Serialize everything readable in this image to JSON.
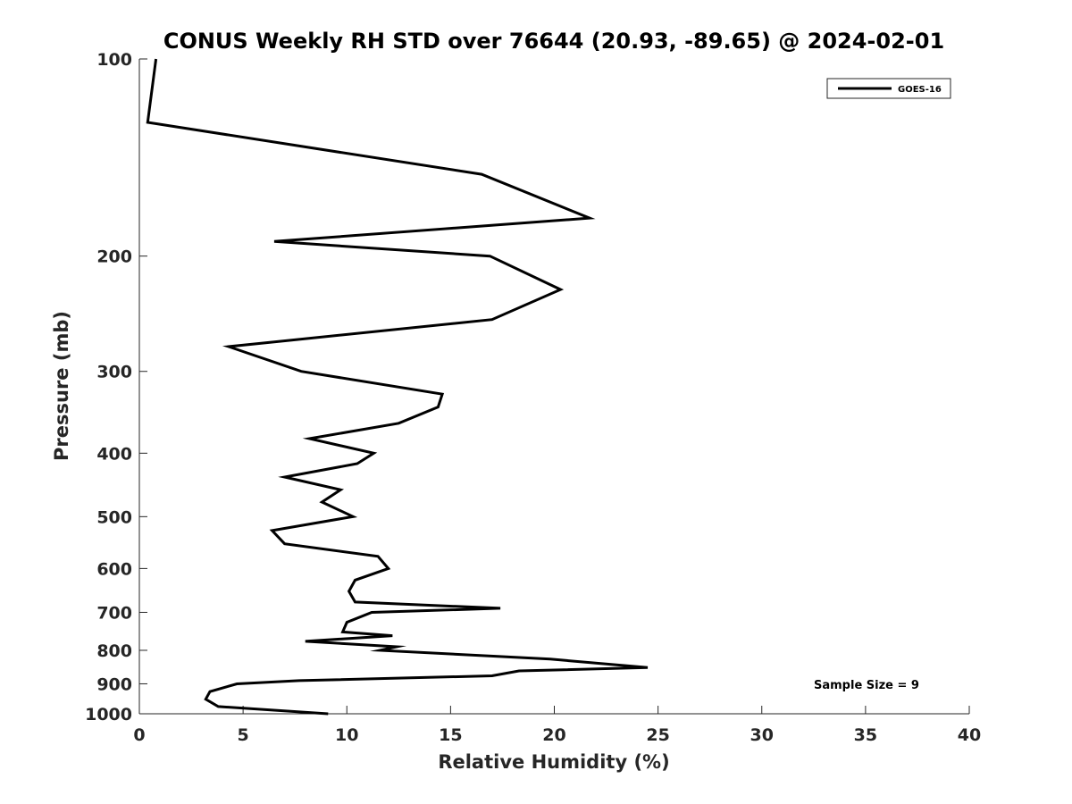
{
  "chart_data": {
    "type": "line",
    "title": "CONUS Weekly RH STD over 76644 (20.93, -89.65) @ 2024-02-01",
    "xlabel": "Relative Humidity (%)",
    "ylabel": "Pressure (mb)",
    "xlim": [
      0,
      40
    ],
    "ylim": [
      100,
      1000
    ],
    "yscale": "log",
    "y_reversed": true,
    "x_ticks": [
      0,
      5,
      10,
      15,
      20,
      25,
      30,
      35,
      40
    ],
    "x_tick_labels": [
      "0",
      "5",
      "10",
      "15",
      "20",
      "25",
      "30",
      "35",
      "40"
    ],
    "y_ticks": [
      100,
      200,
      300,
      400,
      500,
      600,
      700,
      800,
      900,
      1000
    ],
    "y_tick_labels": [
      "100",
      "200",
      "300",
      "400",
      "500",
      "600",
      "700",
      "800",
      "900",
      "1000"
    ],
    "grid": false,
    "legend_position": "top-right",
    "series": [
      {
        "name": "GOES-16",
        "color": "#000000",
        "points": [
          [
            0.8,
            100
          ],
          [
            0.4,
            125
          ],
          [
            16.5,
            150
          ],
          [
            21.7,
            175
          ],
          [
            6.5,
            190
          ],
          [
            16.9,
            200
          ],
          [
            20.3,
            225
          ],
          [
            17.0,
            250
          ],
          [
            4.3,
            275
          ],
          [
            7.8,
            300
          ],
          [
            14.6,
            325
          ],
          [
            14.4,
            340
          ],
          [
            12.5,
            360
          ],
          [
            8.2,
            380
          ],
          [
            11.3,
            400
          ],
          [
            10.5,
            415
          ],
          [
            7.0,
            435
          ],
          [
            9.7,
            455
          ],
          [
            8.8,
            475
          ],
          [
            10.3,
            500
          ],
          [
            6.4,
            525
          ],
          [
            7.0,
            550
          ],
          [
            11.5,
            575
          ],
          [
            12.0,
            600
          ],
          [
            10.4,
            625
          ],
          [
            10.1,
            650
          ],
          [
            10.4,
            675
          ],
          [
            17.4,
            690
          ],
          [
            11.2,
            700
          ],
          [
            10.0,
            725
          ],
          [
            9.8,
            750
          ],
          [
            12.2,
            760
          ],
          [
            8.0,
            775
          ],
          [
            12.4,
            790
          ],
          [
            11.6,
            800
          ],
          [
            19.8,
            825
          ],
          [
            24.5,
            850
          ],
          [
            18.3,
            860
          ],
          [
            17.0,
            875
          ],
          [
            7.7,
            890
          ],
          [
            4.7,
            900
          ],
          [
            3.4,
            925
          ],
          [
            3.2,
            950
          ],
          [
            3.8,
            975
          ],
          [
            9.1,
            1000
          ]
        ]
      }
    ],
    "annotations": [
      {
        "text": "Sample Size = 9",
        "position": "bottom-right"
      }
    ]
  }
}
